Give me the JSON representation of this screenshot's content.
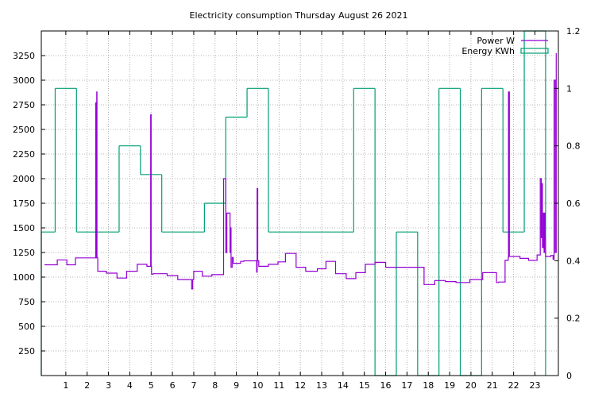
{
  "chart_data": {
    "type": "line",
    "title": "Electricity consumption Thursday August 26 2021",
    "xlabel": "",
    "ylabel": "",
    "y2label": "",
    "xlim": [
      -0.15,
      24.1
    ],
    "ylim": [
      0,
      3500
    ],
    "y2lim": [
      0,
      1.2
    ],
    "x_ticks": [
      1,
      2,
      3,
      4,
      5,
      6,
      7,
      8,
      9,
      10,
      11,
      12,
      13,
      14,
      15,
      16,
      17,
      18,
      19,
      20,
      21,
      22,
      23
    ],
    "y_ticks": [
      250,
      500,
      750,
      1000,
      1250,
      1500,
      1750,
      2000,
      2250,
      2500,
      2750,
      3000,
      3250
    ],
    "y2_ticks": [
      0,
      0.2,
      0.4,
      0.6,
      0.8,
      1,
      1.2
    ],
    "y2_tick_labels": [
      "0",
      "0.2",
      "0.4",
      "0.6",
      "0.8",
      "1",
      "1.2"
    ],
    "grid": true,
    "legend_position": "top-right",
    "colors": {
      "power": "#9400d3",
      "energy": "#009e73"
    },
    "series": [
      {
        "name": "Power W",
        "axis": "y1",
        "style": "steps",
        "x": [
          0,
          0.6,
          1.05,
          1.4,
          1.45,
          2.3,
          2.4,
          2.41,
          2.45,
          2.46,
          2.5,
          2.9,
          3.4,
          3.85,
          4.35,
          4.8,
          4.98,
          5.0,
          5.02,
          5.1,
          5.75,
          6.25,
          6.85,
          6.9,
          6.95,
          7.0,
          7.4,
          7.85,
          8.4,
          8.5,
          8.55,
          8.7,
          8.72,
          8.75,
          8.8,
          8.85,
          8.88,
          8.95,
          9.2,
          9.35,
          9.95,
          9.97,
          10.0,
          10.05,
          10.5,
          10.95,
          11.3,
          11.8,
          12.25,
          12.8,
          13.2,
          13.65,
          14.15,
          14.6,
          15.05,
          15.5,
          16.0,
          16.5,
          17.3,
          17.8,
          18.3,
          18.8,
          19.3,
          19.95,
          20.55,
          21.2,
          21.3,
          21.6,
          21.75,
          21.76,
          21.8,
          22.3,
          22.7,
          23.1,
          23.25,
          23.3,
          23.32,
          23.35,
          23.4,
          23.43,
          23.45,
          23.48,
          23.5,
          23.55,
          23.6,
          23.7,
          23.75,
          23.85,
          23.9,
          23.95,
          24.0
        ],
        "values": [
          1125,
          1175,
          1125,
          1125,
          1195,
          1195,
          2770,
          1195,
          2880,
          1195,
          1060,
          1040,
          990,
          1060,
          1130,
          1110,
          2650,
          1110,
          1030,
          1035,
          1015,
          975,
          975,
          880,
          975,
          1060,
          1010,
          1025,
          2000,
          1250,
          1650,
          1250,
          1500,
          1100,
          1200,
          1140,
          1140,
          1140,
          1160,
          1165,
          1050,
          1900,
          1165,
          1110,
          1130,
          1155,
          1240,
          1100,
          1060,
          1085,
          1160,
          1035,
          985,
          1045,
          1130,
          1150,
          1100,
          1100,
          1100,
          925,
          965,
          955,
          945,
          975,
          1045,
          945,
          950,
          1170,
          1200,
          2880,
          1210,
          1190,
          1170,
          1225,
          2000,
          1400,
          1950,
          1300,
          1650,
          1250,
          1650,
          1390,
          1210,
          1210,
          1210,
          1210,
          1220,
          1180,
          3000,
          1250,
          3275
        ]
      },
      {
        "name": "Energy KWh",
        "axis": "y2",
        "style": "histeps",
        "x": [
          0,
          1,
          2,
          3,
          4,
          5,
          6,
          7,
          8,
          9,
          10,
          11,
          12,
          13,
          14,
          15,
          16,
          17,
          18,
          19,
          20,
          21,
          22,
          23
        ],
        "values": [
          0.5,
          1.0,
          0.5,
          0.5,
          0.8,
          0.7,
          0.5,
          0.5,
          0.6,
          0.9,
          1.0,
          0.5,
          0.5,
          0.5,
          0.5,
          1.0,
          0,
          0.5,
          0,
          1.0,
          0,
          1.0,
          0.5,
          1.2
        ]
      }
    ]
  }
}
